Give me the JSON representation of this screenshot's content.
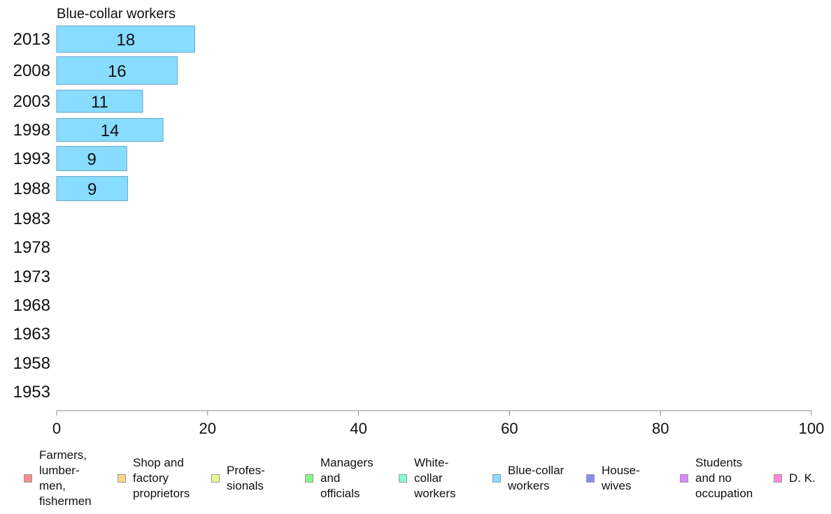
{
  "chart_data": {
    "type": "bar",
    "orientation": "horizontal",
    "panel_title": "Blue-collar workers",
    "categories": [
      "2013",
      "2008",
      "2003",
      "1998",
      "1993",
      "1988",
      "1983",
      "1978",
      "1973",
      "1968",
      "1963",
      "1958",
      "1953"
    ],
    "series": [
      {
        "name": "Blue-collar workers",
        "color": "#87dcff",
        "values": [
          18.3,
          16.0,
          11.4,
          14.1,
          9.3,
          9.4,
          null,
          null,
          null,
          null,
          null,
          null,
          null
        ],
        "labels": [
          "18",
          "16",
          "11",
          "14",
          "9",
          "9",
          "",
          "",
          "",
          "",
          "",
          "",
          ""
        ]
      }
    ],
    "xlim": [
      0,
      100
    ],
    "xticks": [
      "0",
      "20",
      "40",
      "60",
      "80",
      "100"
    ],
    "grid": false,
    "legend": {
      "placement": "bottom",
      "items": [
        {
          "label": "Farmers,\nlumber-\nmen,\nfishermen",
          "color": "#f98b8b"
        },
        {
          "label": "Shop and\nfactory\nproprietors",
          "color": "#fdd587"
        },
        {
          "label": "Profes-\nsionals",
          "color": "#e4fb8a"
        },
        {
          "label": "Managers\nand\nofficials",
          "color": "#88f788"
        },
        {
          "label": "White-\ncollar\nworkers",
          "color": "#86fbd8"
        },
        {
          "label": "Blue-collar\nworkers",
          "color": "#87dcff"
        },
        {
          "label": "House-\nwives",
          "color": "#8b8bf7"
        },
        {
          "label": "Students\nand no\noccupation",
          "color": "#d987fb"
        },
        {
          "label": "D. K.",
          "color": "#fb8bd9"
        }
      ]
    }
  }
}
